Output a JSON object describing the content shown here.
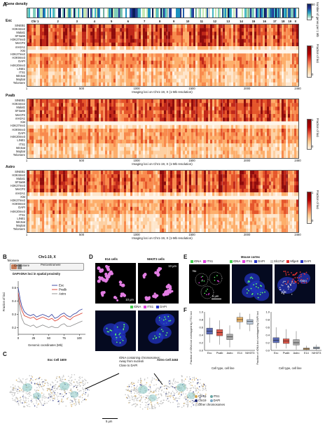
{
  "panel_a": {
    "label": "A",
    "gene_density_title": "Gene density",
    "gene_density_cbar_label": "Number of genes per 1 Mb",
    "gene_density_cbar_ticks": [
      "80",
      "0"
    ],
    "chromosomes": [
      "Chr 1",
      "2",
      "3",
      "4",
      "5",
      "6",
      "7",
      "8",
      "9",
      "10",
      "11",
      "12",
      "13",
      "14",
      "15",
      "16",
      "17",
      "18",
      "19",
      "X"
    ],
    "x_ticks": [
      "1",
      "500",
      "1000",
      "1500",
      "2000",
      "2460"
    ],
    "x_axis_label": "Imaging loci on Chr1-19, X (1-Mb resolution)",
    "cbar_label": "Fraction of loci",
    "cbar_ticks": [
      "1",
      "0"
    ],
    "heatmaps": [
      {
        "title": "Exc",
        "rows": [
          "SINEB1",
          "H3K4me2",
          "Malat1",
          "SF3a66",
          "H3K27me3",
          "MeCP2",
          "mH2A1",
          "Xist",
          "H3K27me2",
          "H3K9me3",
          "DAPI",
          "H4K20me3",
          "LINE1",
          "ITS1",
          "MinSat",
          "MajSat",
          "Telomere"
        ]
      },
      {
        "title": "Pvalb",
        "rows": [
          "SINEB1",
          "H3K4me2",
          "Malat1",
          "SF3a66",
          "MeCP2",
          "mH2A1",
          "Xist",
          "H3K27me2",
          "H3K9me3",
          "DAPI",
          "H4K20me3",
          "LINE1",
          "ITS1",
          "MinSat",
          "MajSat",
          "Telomere"
        ]
      },
      {
        "title": "Astro",
        "rows": [
          "SINEB1",
          "H3K4me2",
          "Malat1",
          "SF3a66",
          "H3K27me3",
          "MeCP2",
          "mH2A1",
          "Xist",
          "H3K27me2",
          "H3K9me3",
          "DAPI",
          "H4K20me3",
          "ITS1",
          "LINE1",
          "MinSat",
          "MajSat",
          "Telomere"
        ]
      }
    ]
  },
  "panel_b": {
    "label": "B",
    "chr_title": "Chr1-19, X",
    "telomere": "Telomere",
    "centromere": "Centromere",
    "pericentromere": "Pericentromere",
    "subtitle": "DAPI-DNA loci in spatial proximity",
    "ylabel": "Fraction of loci",
    "xlabel": "Genomic coordinates (Mb)",
    "y_ticks": [
      "0.5",
      "0.4",
      "0.3",
      "0.2"
    ],
    "x_ticks": [
      "0",
      "25",
      "50",
      "75",
      "100"
    ]
  },
  "chart_data": {
    "type": "line",
    "title": "DAPI-DNA loci in spatial proximity",
    "xlabel": "Genomic coordinates (Mb)",
    "ylabel": "Fraction of loci",
    "ylim": [
      0.15,
      0.55
    ],
    "xlim": [
      0,
      110
    ],
    "x": [
      0,
      3,
      6,
      10,
      15,
      20,
      25,
      30,
      35,
      40,
      45,
      50,
      55,
      60,
      65,
      70,
      75,
      80,
      85,
      90,
      95,
      100,
      105
    ],
    "series": [
      {
        "name": "Exc",
        "color": "#2f3c9e",
        "values": [
          0.5,
          0.42,
          0.36,
          0.32,
          0.3,
          0.29,
          0.3,
          0.28,
          0.29,
          0.3,
          0.29,
          0.28,
          0.3,
          0.27,
          0.28,
          0.3,
          0.31,
          0.29,
          0.28,
          0.3,
          0.31,
          0.33,
          0.34
        ]
      },
      {
        "name": "Pvalb",
        "color": "#d93a2b",
        "values": [
          0.46,
          0.38,
          0.33,
          0.29,
          0.28,
          0.27,
          0.28,
          0.26,
          0.27,
          0.28,
          0.27,
          0.26,
          0.27,
          0.25,
          0.26,
          0.28,
          0.29,
          0.27,
          0.26,
          0.28,
          0.29,
          0.3,
          0.31
        ]
      },
      {
        "name": "Astro",
        "color": "#8a8a8a",
        "values": [
          0.44,
          0.33,
          0.27,
          0.23,
          0.22,
          0.21,
          0.22,
          0.2,
          0.21,
          0.22,
          0.21,
          0.2,
          0.21,
          0.2,
          0.2,
          0.22,
          0.23,
          0.21,
          0.21,
          0.22,
          0.23,
          0.24,
          0.25
        ]
      }
    ]
  },
  "panel_c": {
    "label": "C",
    "exc_title": "Exc  Cell 1609",
    "astro_title": "Astro  Cell 2463",
    "annotation_1": "rDNA containing chromosomes:",
    "annotation_2": "Away from nucleoli",
    "annotation_3": "Close to DAPI",
    "scale": "5 μm",
    "legend": [
      "Chr15",
      "Chr19",
      "ITS1",
      "DAPI",
      "Other chromosomes"
    ]
  },
  "panel_d": {
    "label": "D",
    "e14_title": "E14 cells",
    "nih_title": "NIH3T3 cells",
    "scale_1": "10 μm",
    "scale_2": "10 μm",
    "legend": [
      "rDNA",
      "ITS1",
      "DAPI"
    ]
  },
  "panel_e": {
    "label": "E",
    "title": "Mouse cortex",
    "legend_1": [
      "rDNA",
      "ITS1"
    ],
    "legend_2": [
      "rDNA",
      "ITS1",
      "DAPI"
    ],
    "legend_3": [
      "Slc17a7",
      "Mfge8",
      "DAPI"
    ],
    "nucleolus": "Nu",
    "scale": "5 μm",
    "exc": "Exc",
    "astro": "Astro"
  },
  "panel_f": {
    "label": "F",
    "ylabel_left": "Fraction of rDNA loci overlapped by ITS1 loci",
    "ylabel_right": "Fraction of rDNA loci overlapped by DAPI loci",
    "categories": [
      "Exc",
      "Pvalb",
      "Astro",
      "E14",
      "NIH3T3"
    ],
    "xlabel": "Cell type, cell line",
    "y_ticks_left": [
      "1.0",
      "0.8",
      "0.6",
      "0.4",
      "0.2",
      "0.0"
    ],
    "y_ticks_right": [
      "1.0",
      "0.8",
      "0.6",
      "0.4",
      "0.2",
      "0.0"
    ]
  }
}
